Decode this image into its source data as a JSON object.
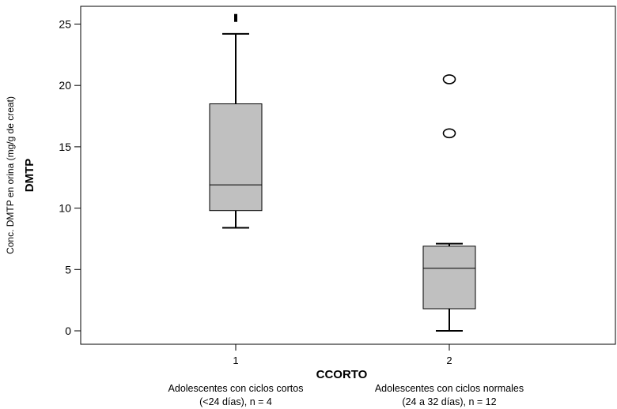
{
  "chart_data": {
    "type": "boxplot",
    "xlabel": "CCORTO",
    "ylabel": "DMTP",
    "ylabel_sub": "Conc. DMTP en orina (mg/g de creat)",
    "ylim": [
      -1,
      26
    ],
    "yticks": [
      0,
      5,
      10,
      15,
      20,
      25
    ],
    "categories": [
      "1",
      "2"
    ],
    "category_descriptions": [
      [
        "Adolescentes con ciclos cortos",
        "(<24 días), n = 4"
      ],
      [
        "Adolescentes con ciclos normales",
        "(24 a 32 días), n = 12"
      ]
    ],
    "box_color": "#c0c0c0",
    "series": [
      {
        "category": "1",
        "whisker_low": 8.4,
        "q1": 9.8,
        "median": 11.9,
        "q3": 18.5,
        "whisker_high": 24.2,
        "outliers": [],
        "extremes": [
          25.5
        ]
      },
      {
        "category": "2",
        "whisker_low": 0.0,
        "q1": 1.8,
        "median": 5.1,
        "q3": 6.9,
        "whisker_high": 7.1,
        "outliers": [
          20.5,
          16.1
        ],
        "extremes": []
      }
    ],
    "grid": false,
    "legend": "none"
  }
}
